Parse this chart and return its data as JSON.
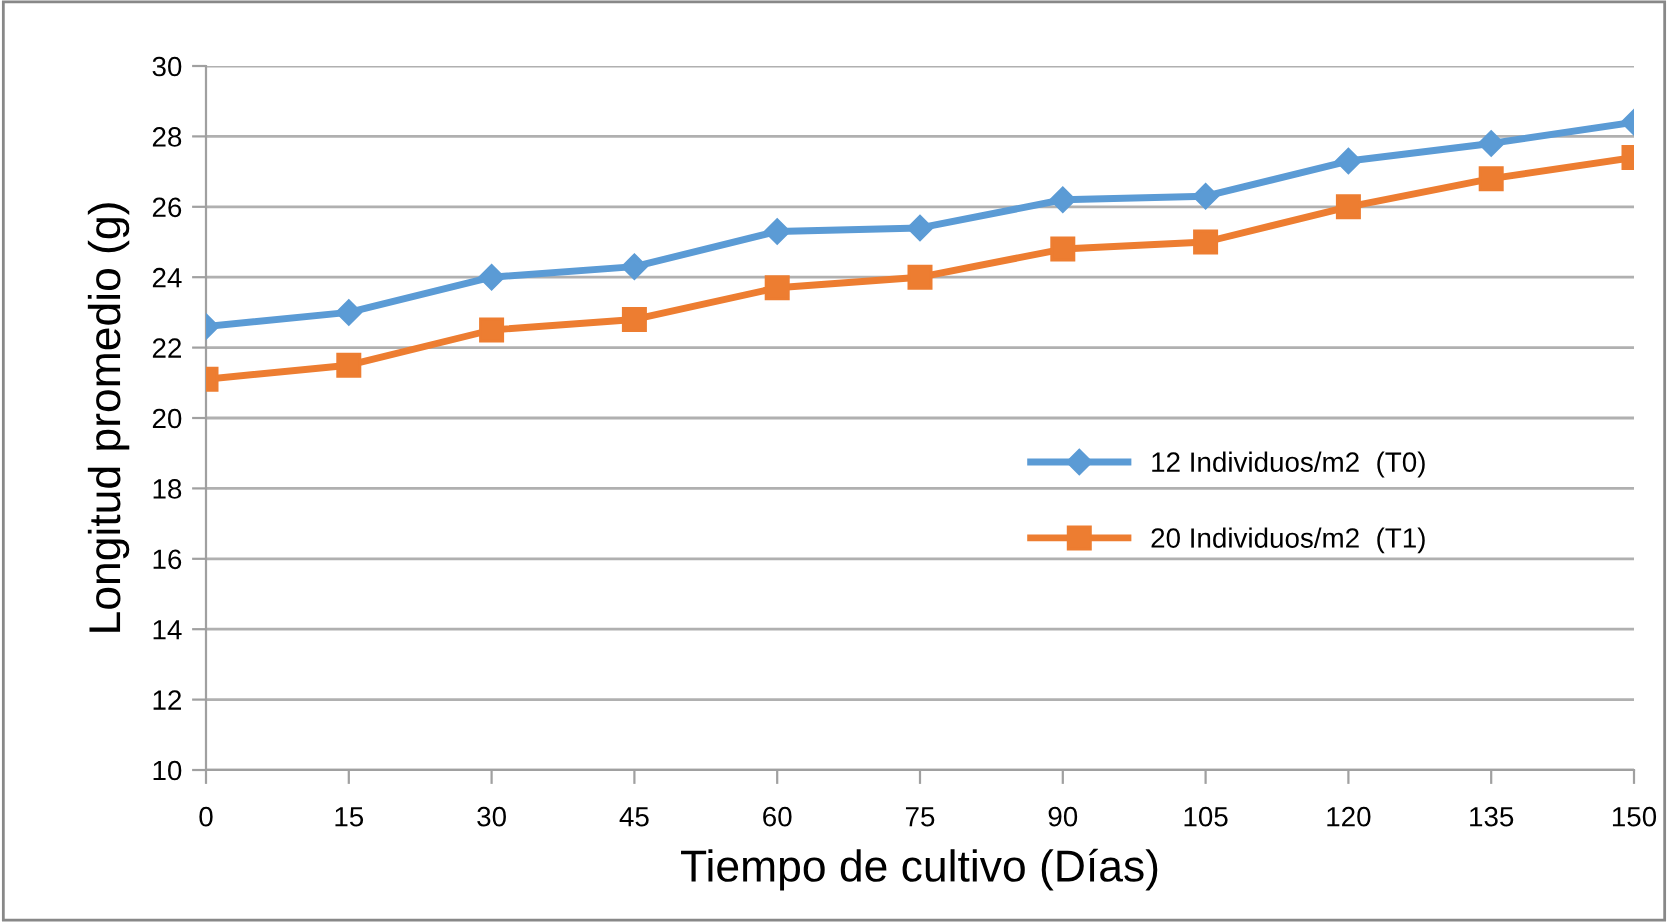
{
  "chart_data": {
    "type": "line",
    "xlabel": "Tiempo de cultivo (Días)",
    "ylabel": "Longitud promedio (g)",
    "categories": [
      "0",
      "15",
      "30",
      "45",
      "60",
      "75",
      "90",
      "105",
      "120",
      "135",
      "150"
    ],
    "series": [
      {
        "name": "12 Individuos/m2  (T0)",
        "color": "#5b9bd5",
        "marker": "diamond",
        "values": [
          22.6,
          23.0,
          24.0,
          24.3,
          25.3,
          25.4,
          26.2,
          26.3,
          27.3,
          27.8,
          28.4
        ]
      },
      {
        "name": "20 Individuos/m2  (T1)",
        "color": "#ed7d31",
        "marker": "square",
        "values": [
          21.1,
          21.5,
          22.5,
          22.8,
          23.7,
          24.0,
          24.8,
          25.0,
          26.0,
          26.8,
          27.4
        ]
      }
    ],
    "ylim": [
      10,
      30
    ],
    "yticks": [
      10,
      12,
      14,
      16,
      18,
      20,
      22,
      24,
      26,
      28,
      30
    ],
    "grid": "y",
    "legend": "right",
    "line_style": "solid"
  }
}
